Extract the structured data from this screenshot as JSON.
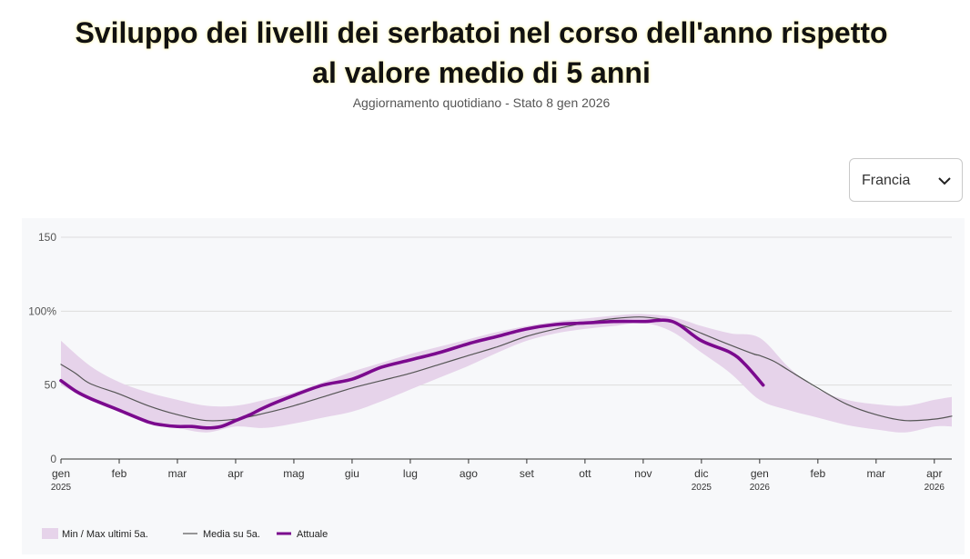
{
  "header": {
    "title_line1": "Sviluppo dei livelli dei serbatoi nel corso dell'anno rispetto",
    "title_line2": "al valore medio di 5 anni",
    "subtitle": "Aggiornamento quotidiano - Stato 8 gen 2026"
  },
  "country_select": {
    "value": "Francia",
    "icon": "chevron-down-icon"
  },
  "colors": {
    "band": "#e6d3ea",
    "average": "#555555",
    "current": "#7b0a8e",
    "grid": "#dddddd",
    "bg": "#f7f8fa"
  },
  "chart_data": {
    "type": "line",
    "x_unit": "month index (0 = gen 2025)",
    "xlim": [
      0,
      15.3
    ],
    "ylim": [
      0,
      150
    ],
    "y_ticks": [
      {
        "value": 150,
        "label": "150"
      },
      {
        "value": 100,
        "label": "100%"
      },
      {
        "value": 50,
        "label": "50"
      },
      {
        "value": 0,
        "label": "0"
      }
    ],
    "x_ticks": [
      {
        "value": 0,
        "label": "gen",
        "sublabel": "2025"
      },
      {
        "value": 1,
        "label": "feb",
        "sublabel": ""
      },
      {
        "value": 2,
        "label": "mar",
        "sublabel": ""
      },
      {
        "value": 3,
        "label": "apr",
        "sublabel": ""
      },
      {
        "value": 4,
        "label": "mag",
        "sublabel": ""
      },
      {
        "value": 5,
        "label": "giu",
        "sublabel": ""
      },
      {
        "value": 6,
        "label": "lug",
        "sublabel": ""
      },
      {
        "value": 7,
        "label": "ago",
        "sublabel": ""
      },
      {
        "value": 8,
        "label": "set",
        "sublabel": ""
      },
      {
        "value": 9,
        "label": "ott",
        "sublabel": ""
      },
      {
        "value": 10,
        "label": "nov",
        "sublabel": ""
      },
      {
        "value": 11,
        "label": "dic",
        "sublabel": "2025"
      },
      {
        "value": 12,
        "label": "gen",
        "sublabel": "2026"
      },
      {
        "value": 13,
        "label": "feb",
        "sublabel": ""
      },
      {
        "value": 14,
        "label": "mar",
        "sublabel": ""
      },
      {
        "value": 15,
        "label": "apr",
        "sublabel": "2026"
      }
    ],
    "grid": true,
    "legend_position": "bottom-left",
    "series": [
      {
        "name": "Min / Max ultimi 5a.",
        "kind": "band",
        "x": [
          0,
          0.5,
          1,
          1.5,
          2,
          2.5,
          3,
          3.5,
          4,
          4.5,
          5,
          5.5,
          6,
          6.5,
          7,
          7.5,
          8,
          8.5,
          9,
          9.5,
          10,
          10.5,
          11,
          11.5,
          12,
          12.5,
          13,
          13.5,
          14,
          14.5,
          15,
          15.3
        ],
        "min": [
          50,
          40,
          32,
          25,
          21,
          18,
          22,
          21,
          24,
          28,
          32,
          39,
          47,
          55,
          63,
          72,
          80,
          85,
          88,
          90,
          92,
          86,
          72,
          58,
          40,
          33,
          28,
          23,
          20,
          18,
          22,
          22
        ],
        "max": [
          80,
          63,
          52,
          45,
          40,
          36,
          36,
          40,
          45,
          52,
          59,
          65,
          71,
          76,
          81,
          86,
          90,
          93,
          95,
          97,
          98,
          96,
          90,
          85,
          82,
          62,
          47,
          40,
          37,
          36,
          40,
          42
        ]
      },
      {
        "name": "Media su 5a.",
        "kind": "line",
        "x": [
          0,
          0.25,
          0.5,
          1,
          1.5,
          2,
          2.5,
          3,
          3.5,
          4,
          4.5,
          5,
          5.5,
          6,
          6.5,
          7,
          7.5,
          8,
          8.5,
          9,
          9.5,
          10,
          10.5,
          11,
          11.5,
          11.9,
          12,
          12.25,
          12.5,
          13,
          13.5,
          14,
          14.5,
          15,
          15.3
        ],
        "y": [
          64,
          58,
          51,
          44,
          36,
          30,
          26,
          27,
          31,
          36,
          42,
          48,
          53,
          58,
          64,
          70,
          76,
          83,
          88,
          92,
          95,
          96,
          93,
          85,
          77,
          71,
          70,
          66,
          60,
          48,
          37,
          30,
          26,
          27,
          29
        ]
      },
      {
        "name": "Attuale",
        "kind": "line",
        "x": [
          0,
          0.25,
          0.5,
          1,
          1.5,
          1.75,
          2,
          2.25,
          2.5,
          2.75,
          3,
          3.25,
          3.5,
          4,
          4.5,
          5,
          5.5,
          6,
          6.5,
          7,
          7.5,
          8,
          8.5,
          9,
          9.5,
          10,
          10.5,
          11,
          11.5,
          11.75,
          12.06
        ],
        "y": [
          53,
          46,
          41,
          33,
          25,
          23,
          22,
          22,
          21,
          22,
          26,
          30,
          35,
          43,
          50,
          54,
          62,
          67,
          72,
          78,
          83,
          88,
          91,
          92,
          93,
          93,
          93,
          80,
          72,
          64,
          50
        ]
      }
    ]
  }
}
